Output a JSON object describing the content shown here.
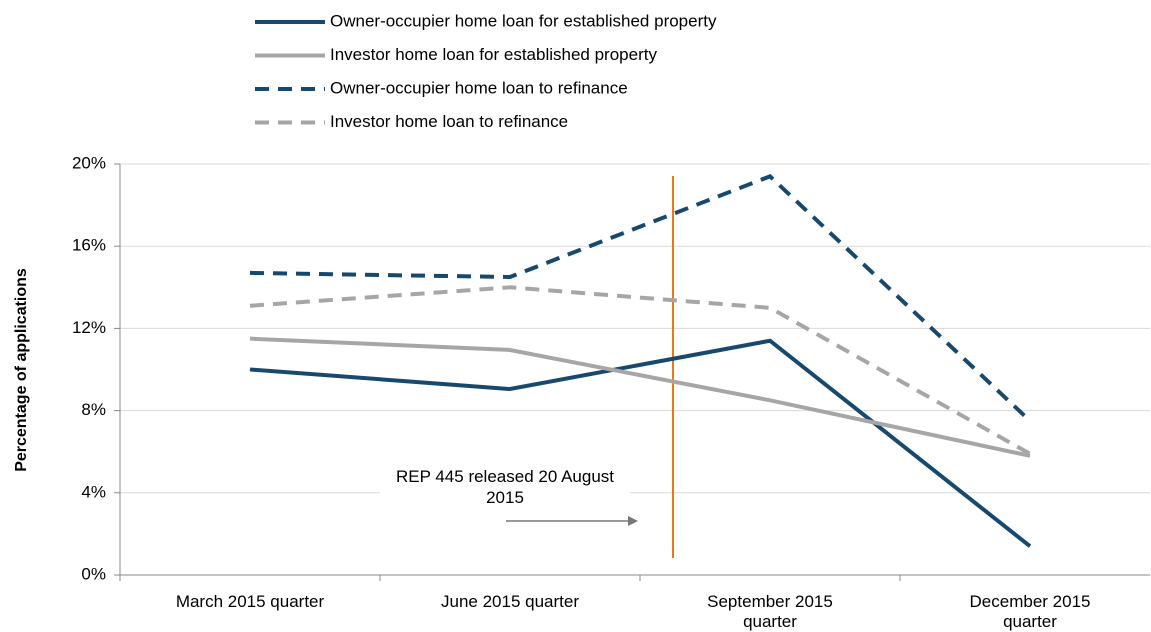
{
  "chart_data": {
    "type": "line",
    "y_axis_label": "Percentage of applications",
    "categories": [
      "March 2015 quarter",
      "June 2015 quarter",
      "September 2015 quarter",
      "December 2015 quarter"
    ],
    "series": [
      {
        "name": "Owner-occupier home loan for established property",
        "color": "#17496f",
        "dash": false,
        "values": [
          10.0,
          9.05,
          11.4,
          1.4
        ]
      },
      {
        "name": "Investor home loan for established property",
        "color": "#a6a6a6",
        "dash": false,
        "values": [
          11.5,
          10.95,
          8.5,
          5.8
        ]
      },
      {
        "name": "Owner-occupier home loan to refinance",
        "color": "#17496f",
        "dash": true,
        "values": [
          14.7,
          14.5,
          19.4,
          7.5
        ]
      },
      {
        "name": "Investor home loan to refinance",
        "color": "#a6a6a6",
        "dash": true,
        "values": [
          13.1,
          14.0,
          13.0,
          5.9
        ]
      }
    ],
    "ylim": [
      0,
      20
    ],
    "yticks": [
      {
        "value": 0,
        "label": "0%"
      },
      {
        "value": 4,
        "label": "4%"
      },
      {
        "value": 8,
        "label": "8%"
      },
      {
        "value": 12,
        "label": "12%"
      },
      {
        "value": 16,
        "label": "16%"
      },
      {
        "value": 20,
        "label": "20%"
      }
    ],
    "grid": true,
    "annotation": "REP 445 released 20 August 2015",
    "event_color": "#e87722"
  }
}
